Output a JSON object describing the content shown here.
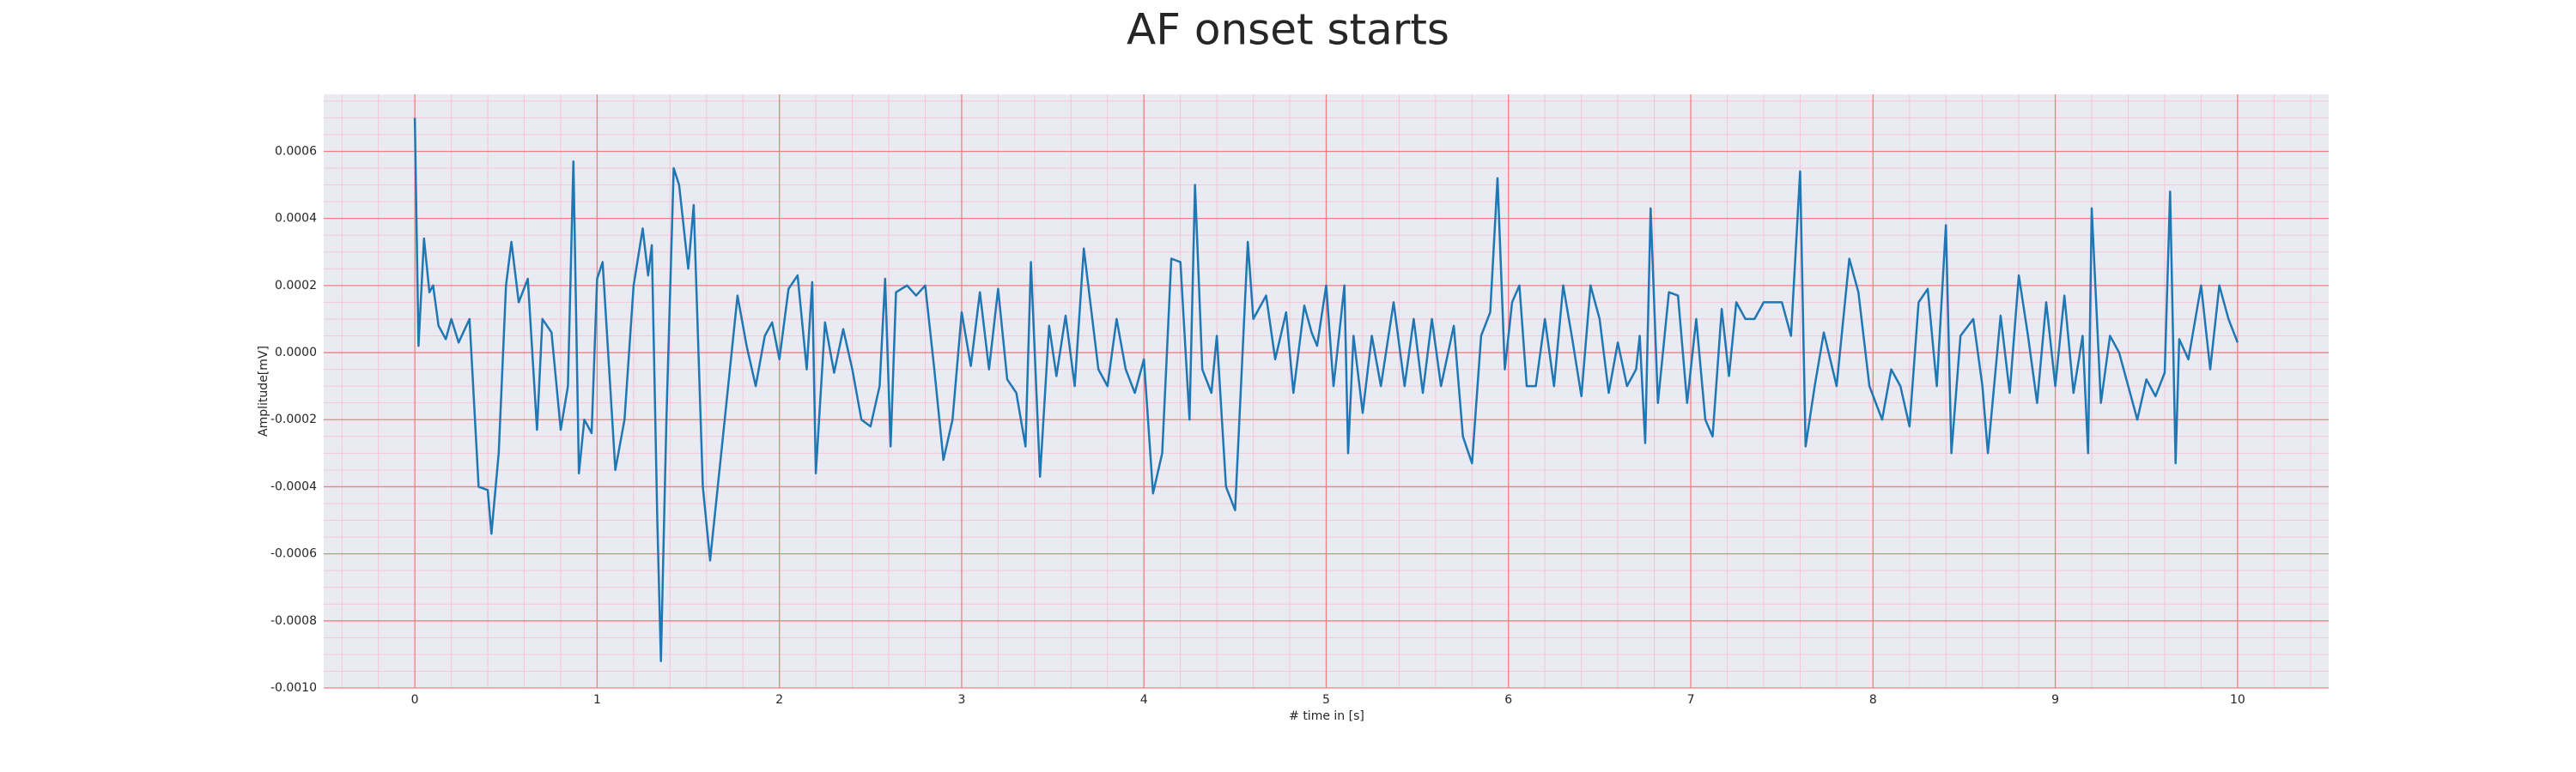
{
  "chart_data": {
    "type": "line",
    "title": "AF onset starts",
    "x_label": "# time in [s]",
    "y_label": "Amplitude[mV]",
    "xlim": [
      -0.5,
      10.5
    ],
    "xticks": [
      0,
      1,
      2,
      3,
      4,
      5,
      6,
      7,
      8,
      9,
      10
    ],
    "ylim": [
      -0.001,
      0.00077
    ],
    "yticks": [
      {
        "value": -0.001,
        "label": "-0.0010"
      },
      {
        "value": -0.0008,
        "label": "-0.0008"
      },
      {
        "value": -0.0006,
        "label": "-0.0006"
      },
      {
        "value": -0.0004,
        "label": "-0.0004"
      },
      {
        "value": -0.0002,
        "label": "-0.0002"
      },
      {
        "value": 0,
        "label": "0.0000"
      },
      {
        "value": 0.0002,
        "label": "0.0002"
      },
      {
        "value": 0.0004,
        "label": "0.0004"
      },
      {
        "value": 0.0006,
        "label": "0.0006"
      }
    ],
    "grid": true,
    "grid_color": "#f08080",
    "minor_grid": true,
    "minor_grid_color": "#f5c6d4",
    "background": "#eaeaf2",
    "series": [
      {
        "name": "Amplitude",
        "color": "#1f77b4",
        "x": [
          0,
          0.02,
          0.05,
          0.08,
          0.1,
          0.13,
          0.17,
          0.2,
          0.24,
          0.3,
          0.35,
          0.4,
          0.42,
          0.46,
          0.5,
          0.53,
          0.57,
          0.62,
          0.67,
          0.7,
          0.75,
          0.8,
          0.84,
          0.87,
          0.9,
          0.93,
          0.97,
          1.0,
          1.03,
          1.1,
          1.15,
          1.2,
          1.25,
          1.28,
          1.3,
          1.33,
          1.35,
          1.38,
          1.42,
          1.45,
          1.5,
          1.53,
          1.58,
          1.62,
          1.7,
          1.77,
          1.82,
          1.87,
          1.92,
          1.96,
          2.0,
          2.05,
          2.1,
          2.15,
          2.18,
          2.2,
          2.25,
          2.3,
          2.35,
          2.4,
          2.45,
          2.5,
          2.55,
          2.58,
          2.61,
          2.64,
          2.7,
          2.75,
          2.8,
          2.85,
          2.9,
          2.95,
          3.0,
          3.05,
          3.1,
          3.15,
          3.2,
          3.25,
          3.3,
          3.35,
          3.38,
          3.43,
          3.48,
          3.52,
          3.57,
          3.62,
          3.67,
          3.75,
          3.8,
          3.85,
          3.9,
          3.95,
          4.0,
          4.05,
          4.1,
          4.15,
          4.2,
          4.25,
          4.28,
          4.32,
          4.37,
          4.4,
          4.45,
          4.5,
          4.57,
          4.6,
          4.67,
          4.72,
          4.78,
          4.82,
          4.88,
          4.92,
          4.95,
          5.0,
          5.04,
          5.07,
          5.1,
          5.12,
          5.15,
          5.2,
          5.25,
          5.3,
          5.37,
          5.43,
          5.48,
          5.53,
          5.58,
          5.63,
          5.7,
          5.75,
          5.8,
          5.85,
          5.9,
          5.94,
          5.98,
          6.02,
          6.06,
          6.1,
          6.15,
          6.2,
          6.25,
          6.3,
          6.35,
          6.4,
          6.45,
          6.5,
          6.55,
          6.6,
          6.65,
          6.7,
          6.72,
          6.75,
          6.78,
          6.82,
          6.88,
          6.93,
          6.98,
          7.03,
          7.08,
          7.12,
          7.17,
          7.21,
          7.25,
          7.3,
          7.35,
          7.4,
          7.45,
          7.5,
          7.55,
          7.6,
          7.63,
          7.68,
          7.73,
          7.8,
          7.87,
          7.92,
          7.98,
          8.05,
          8.1,
          8.15,
          8.2,
          8.25,
          8.3,
          8.35,
          8.4,
          8.43,
          8.48,
          8.55,
          8.6,
          8.63,
          8.7,
          8.75,
          8.8,
          8.85,
          8.9,
          8.95,
          9.0,
          9.05,
          9.1,
          9.15,
          9.18,
          9.2,
          9.25,
          9.3,
          9.35,
          9.4,
          9.45,
          9.5,
          9.55,
          9.6,
          9.63,
          9.66,
          9.68,
          9.73,
          9.8,
          9.85,
          9.9,
          9.95,
          10.0
        ],
        "values": [
          0.0007,
          2e-05,
          0.00034,
          0.00018,
          0.0002,
          8e-05,
          4e-05,
          0.0001,
          3e-05,
          0.0001,
          -0.0004,
          -0.00041,
          -0.00054,
          -0.0003,
          0.0002,
          0.00033,
          0.00015,
          0.00022,
          -0.00023,
          0.0001,
          6e-05,
          -0.00023,
          -0.0001,
          0.00057,
          -0.00036,
          -0.0002,
          -0.00024,
          0.00022,
          0.00027,
          -0.00035,
          -0.0002,
          0.0002,
          0.00037,
          0.00023,
          0.00032,
          -0.0005,
          -0.00092,
          -0.0002,
          0.00055,
          0.0005,
          0.00025,
          0.00044,
          -0.0004,
          -0.00062,
          -0.0002,
          0.00017,
          2e-05,
          -0.0001,
          5e-05,
          9e-05,
          -2e-05,
          0.00019,
          0.00023,
          -5e-05,
          0.00021,
          -0.00036,
          9e-05,
          -6e-05,
          7e-05,
          -5e-05,
          -0.0002,
          -0.00022,
          -0.0001,
          0.00022,
          -0.00028,
          0.00018,
          0.0002,
          0.00017,
          0.0002,
          -5e-05,
          -0.00032,
          -0.0002,
          0.00012,
          -4e-05,
          0.00018,
          -5e-05,
          0.00019,
          -8e-05,
          -0.00012,
          -0.00028,
          0.00027,
          -0.00037,
          8e-05,
          -7e-05,
          0.00011,
          -0.0001,
          0.00031,
          -5e-05,
          -0.0001,
          0.0001,
          -5e-05,
          -0.00012,
          -2e-05,
          -0.00042,
          -0.0003,
          0.00028,
          0.00027,
          -0.0002,
          0.0005,
          -5e-05,
          -0.00012,
          5e-05,
          -0.0004,
          -0.00047,
          0.00033,
          0.0001,
          0.00017,
          -2e-05,
          0.00012,
          -0.00012,
          0.00014,
          6e-05,
          2e-05,
          0.0002,
          -0.0001,
          5e-05,
          0.0002,
          -0.0003,
          5e-05,
          -0.00018,
          5e-05,
          -0.0001,
          0.00015,
          -0.0001,
          0.0001,
          -0.00012,
          0.0001,
          -0.0001,
          8e-05,
          -0.00025,
          -0.00033,
          5e-05,
          0.00012,
          0.00052,
          -5e-05,
          0.00015,
          0.0002,
          -0.0001,
          -0.0001,
          0.0001,
          -0.0001,
          0.0002,
          4e-05,
          -0.00013,
          0.0002,
          0.0001,
          -0.00012,
          3e-05,
          -0.0001,
          -5e-05,
          5e-05,
          -0.00027,
          0.00043,
          -0.00015,
          0.00018,
          0.00017,
          -0.00015,
          0.0001,
          -0.0002,
          -0.00025,
          0.00013,
          -7e-05,
          0.00015,
          0.0001,
          0.0001,
          0.00015,
          0.00015,
          0.00015,
          5e-05,
          0.00054,
          -0.00028,
          -0.0001,
          6e-05,
          -0.0001,
          0.00028,
          0.00018,
          -0.0001,
          -0.0002,
          -5e-05,
          -0.0001,
          -0.00022,
          0.00015,
          0.00019,
          -0.0001,
          0.00038,
          -0.0003,
          5e-05,
          0.0001,
          -0.0001,
          -0.0003,
          0.00011,
          -0.00012,
          0.00023,
          5e-05,
          -0.00015,
          0.00015,
          -0.0001,
          0.00017,
          -0.00012,
          5e-05,
          -0.0003,
          0.00043,
          -0.00015,
          5e-05,
          0,
          -0.0001,
          -0.0002,
          -8e-05,
          -0.00013,
          -6e-05,
          0.00048,
          -0.00033,
          4e-05,
          -2e-05,
          0.0002,
          -5e-05,
          0.0002,
          0.0001,
          3e-05
        ]
      }
    ]
  }
}
